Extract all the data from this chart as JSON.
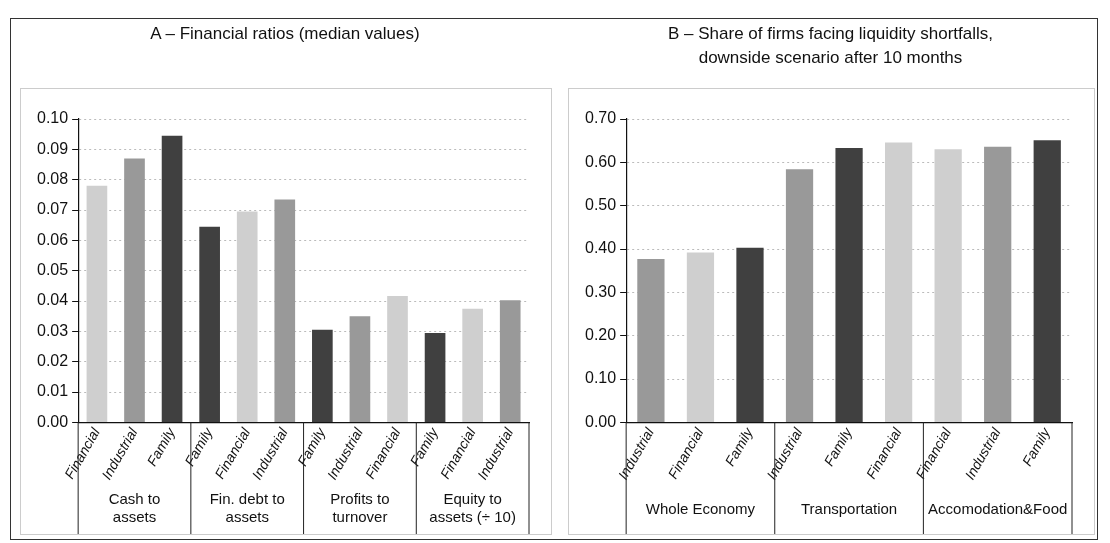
{
  "chart_data": [
    {
      "type": "bar",
      "title": "A – Financial ratios (median values)",
      "categories": [
        "Financial",
        "Industrial",
        "Family",
        "Family",
        "Financial",
        "Industrial",
        "Family",
        "Industrial",
        "Financial",
        "Family",
        "Financial",
        "Industrial"
      ],
      "values": [
        0.078,
        0.087,
        0.0945,
        0.0645,
        0.0695,
        0.0735,
        0.0305,
        0.035,
        0.0417,
        0.0295,
        0.0375,
        0.0403
      ],
      "colors": [
        "#cfcfcf",
        "#999999",
        "#404040",
        "#404040",
        "#cfcfcf",
        "#999999",
        "#404040",
        "#999999",
        "#cfcfcf",
        "#404040",
        "#cfcfcf",
        "#999999"
      ],
      "annotations": [
        "Cash to assets",
        "Fin. debt to assets",
        "Profits to turnover",
        "Equity to assets (÷ 10)"
      ],
      "ylim": [
        0,
        0.1
      ],
      "yticks": [
        {
          "value": 0,
          "label": "0.00"
        },
        {
          "value": 0.01,
          "label": "0.01"
        },
        {
          "value": 0.02,
          "label": "0.02"
        },
        {
          "value": 0.03,
          "label": "0.03"
        },
        {
          "value": 0.04,
          "label": "0.04"
        },
        {
          "value": 0.05,
          "label": "0.05"
        },
        {
          "value": 0.06,
          "label": "0.06"
        },
        {
          "value": 0.07,
          "label": "0.07"
        },
        {
          "value": 0.08,
          "label": "0.08"
        },
        {
          "value": 0.09,
          "label": "0.09"
        },
        {
          "value": 0.1,
          "label": "0.10"
        }
      ],
      "grid": "y",
      "legend": false
    },
    {
      "type": "bar",
      "title": "B – Share of firms facing liquidity shortfalls, downside scenario after 10 months",
      "categories": [
        "Industrial",
        "Financial",
        "Family",
        "Industrial",
        "Family",
        "Financial",
        "Financial",
        "Industrial",
        "Family"
      ],
      "values": [
        0.377,
        0.392,
        0.403,
        0.584,
        0.633,
        0.646,
        0.63,
        0.636,
        0.651
      ],
      "colors": [
        "#999999",
        "#cfcfcf",
        "#404040",
        "#999999",
        "#404040",
        "#cfcfcf",
        "#cfcfcf",
        "#999999",
        "#404040"
      ],
      "annotations": [
        "Whole Economy",
        "Transportation",
        "Accomodation&Food"
      ],
      "ylim": [
        0,
        0.7
      ],
      "yticks": [
        {
          "value": 0,
          "label": "0.00"
        },
        {
          "value": 0.1,
          "label": "0.10"
        },
        {
          "value": 0.2,
          "label": "0.20"
        },
        {
          "value": 0.3,
          "label": "0.30"
        },
        {
          "value": 0.4,
          "label": "0.40"
        },
        {
          "value": 0.5,
          "label": "0.50"
        },
        {
          "value": 0.6,
          "label": "0.60"
        },
        {
          "value": 0.7,
          "label": "0.70"
        }
      ],
      "grid": "y",
      "legend": false
    }
  ]
}
